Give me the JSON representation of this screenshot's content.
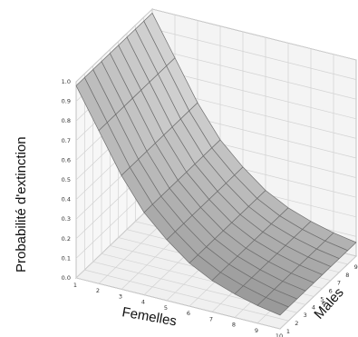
{
  "chart_data": {
    "type": "surface",
    "zlabel": "Probabilité d'extinction",
    "xlabel": "Femelles",
    "ylabel": "Mâles",
    "x_ticks": [
      "1",
      "2",
      "3",
      "4",
      "5",
      "6",
      "7",
      "8",
      "9",
      "10"
    ],
    "y_ticks": [
      "1",
      "2",
      "3",
      "4",
      "5",
      "6",
      "7",
      "8",
      "9",
      "10"
    ],
    "z_ticks": [
      "0.0",
      "0.1",
      "0.2",
      "0.3",
      "0.4",
      "0.5",
      "0.6",
      "0.7",
      "0.8",
      "0.9",
      "1.0"
    ],
    "x": [
      1,
      2,
      3,
      4,
      5,
      6,
      7,
      8,
      9,
      10
    ],
    "y": [
      1,
      2,
      3,
      4,
      5,
      6,
      7,
      8,
      9,
      10
    ],
    "z_by_female": [
      0.98,
      0.78,
      0.58,
      0.42,
      0.31,
      0.22,
      0.16,
      0.12,
      0.09,
      0.07
    ],
    "zlim": [
      0,
      1
    ],
    "grid": true,
    "colors": {
      "surface": "#c8c8c8",
      "mesh": "#6e6e6e",
      "grid": "#d2d2d2",
      "box": "#8a8a8a"
    }
  }
}
